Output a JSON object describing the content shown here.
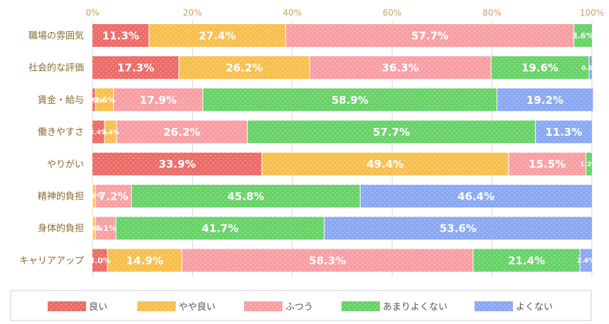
{
  "chart_data": {
    "type": "bar",
    "orientation": "horizontal",
    "stacked": true,
    "percent": true,
    "title": "",
    "xlabel": "",
    "ylabel": "",
    "xlim": [
      0,
      100
    ],
    "x_ticks": [
      "0%",
      "20%",
      "40%",
      "60%",
      "80%",
      "100%"
    ],
    "grid": true,
    "legend_position": "bottom",
    "categories": [
      "職場の雰囲気",
      "社会的な評価",
      "賃金・給与",
      "働きやすさ",
      "やりがい",
      "精神的負担",
      "身体的負担",
      "キャリアアップ"
    ],
    "series": [
      {
        "name": "良い",
        "color": "#ec6b68",
        "values": [
          11.3,
          17.3,
          0.6,
          2.4,
          33.9,
          0,
          0,
          3.0
        ]
      },
      {
        "name": "やや良い",
        "color": "#f7bf4e",
        "values": [
          27.4,
          26.2,
          3.6,
          2.4,
          49.4,
          0.6,
          0.6,
          14.9
        ]
      },
      {
        "name": "ふつう",
        "color": "#f89fa4",
        "values": [
          57.7,
          36.3,
          17.9,
          26.2,
          15.5,
          7.2,
          4.1,
          58.3
        ]
      },
      {
        "name": "あまりよくない",
        "color": "#68d268",
        "values": [
          3.6,
          19.6,
          58.9,
          57.7,
          1.2,
          45.8,
          41.7,
          21.4
        ]
      },
      {
        "name": "よくない",
        "color": "#8aa8f2",
        "values": [
          0,
          0.6,
          19.2,
          11.3,
          0,
          46.4,
          53.6,
          2.4
        ]
      }
    ],
    "value_labels": [
      [
        "11.3",
        "27.4",
        "57.7",
        "3.6",
        ""
      ],
      [
        "17.3",
        "26.2",
        "36.3",
        "19.6",
        "0.6"
      ],
      [
        "0.6",
        "3.6",
        "17.9",
        "58.9",
        "19.2"
      ],
      [
        "2.4",
        "2.4",
        "26.2",
        "57.7",
        "11.3"
      ],
      [
        "33.9",
        "49.4",
        "15.5",
        "1.2",
        ""
      ],
      [
        "",
        "0.6",
        "7.2",
        "45.8",
        "46.4"
      ],
      [
        "",
        "0.6",
        "4.1",
        "41.7",
        "53.6"
      ],
      [
        "3.0",
        "14.9",
        "58.3",
        "21.4",
        "2.4"
      ]
    ],
    "value_suffix": "%"
  }
}
